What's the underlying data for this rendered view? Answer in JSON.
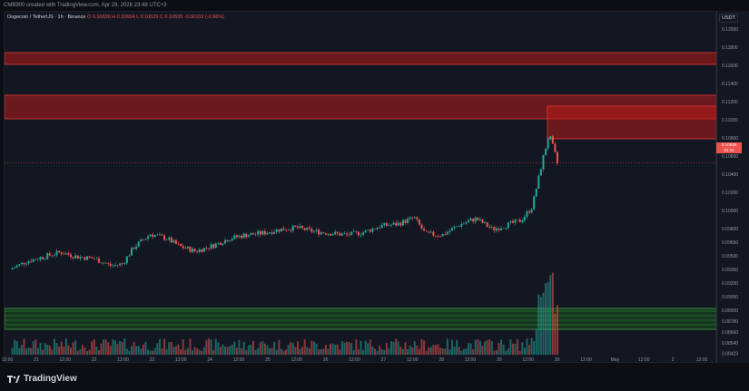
{
  "header": {
    "text": "CMB900 created with TradingView.com, Apr 29, 2026 23:48 UTC+3"
  },
  "legend": {
    "symbol": "Dogecoin / TetherUS · 1h · Binance",
    "open": "O 0.10636",
    "high": "H 0.10654",
    "low": "L 0.10529",
    "close": "C 0.10535",
    "change": "-0.00102 (-0.96%)"
  },
  "price_axis": {
    "currency": "USDT",
    "current_price": "0.10535",
    "current_sub": "01:11"
  },
  "footer": {
    "brand": "TradingView"
  },
  "colors": {
    "up": "#26a69a",
    "down": "#ef5350",
    "background": "#131722",
    "resistance_zone": "#b71c1c",
    "support_zone": "#1b5e20"
  },
  "chart_data": {
    "type": "candlestick",
    "symbol": "DOGEUSDT",
    "interval": "1h",
    "x": [
      "12:00",
      "21",
      "12:00",
      "22",
      "12:00",
      "23",
      "12:00",
      "24",
      "12:00",
      "25",
      "12:00",
      "26",
      "12:00",
      "27",
      "12:00",
      "28",
      "12:00",
      "29",
      "12:00",
      "30",
      "12:00",
      "May",
      "12:00",
      "2",
      "12:00"
    ],
    "y_ticks": [
      "0.12000",
      "0.11800",
      "0.11600",
      "0.11400",
      "0.11200",
      "0.11000",
      "0.10800",
      "0.10600",
      "0.10400",
      "0.10200",
      "0.10000",
      "0.09800",
      "0.09650",
      "0.09500",
      "0.09350",
      "0.09200",
      "0.09050",
      "0.08900",
      "0.08780",
      "0.08660",
      "0.08540",
      "0.08423"
    ],
    "ylim": [
      0.0842,
      0.1212
    ],
    "close_path": [
      {
        "x": 0.0,
        "y": 0.0936
      },
      {
        "x": 0.3,
        "y": 0.0945
      },
      {
        "x": 0.6,
        "y": 0.095
      },
      {
        "x": 0.9,
        "y": 0.0955
      },
      {
        "x": 1.2,
        "y": 0.095
      },
      {
        "x": 1.5,
        "y": 0.0948
      },
      {
        "x": 1.8,
        "y": 0.094
      },
      {
        "x": 2.0,
        "y": 0.0942
      },
      {
        "x": 2.2,
        "y": 0.096
      },
      {
        "x": 2.5,
        "y": 0.0975
      },
      {
        "x": 2.8,
        "y": 0.097
      },
      {
        "x": 3.0,
        "y": 0.0962
      },
      {
        "x": 3.3,
        "y": 0.0956
      },
      {
        "x": 3.6,
        "y": 0.0962
      },
      {
        "x": 3.9,
        "y": 0.097
      },
      {
        "x": 4.2,
        "y": 0.0974
      },
      {
        "x": 4.5,
        "y": 0.0976
      },
      {
        "x": 4.8,
        "y": 0.098
      },
      {
        "x": 5.1,
        "y": 0.0982
      },
      {
        "x": 5.4,
        "y": 0.0978
      },
      {
        "x": 5.7,
        "y": 0.0976
      },
      {
        "x": 6.0,
        "y": 0.0974
      },
      {
        "x": 6.3,
        "y": 0.0977
      },
      {
        "x": 6.6,
        "y": 0.0984
      },
      {
        "x": 6.9,
        "y": 0.0986
      },
      {
        "x": 7.2,
        "y": 0.0993
      },
      {
        "x": 7.4,
        "y": 0.0975
      },
      {
        "x": 7.7,
        "y": 0.0974
      },
      {
        "x": 8.0,
        "y": 0.0985
      },
      {
        "x": 8.3,
        "y": 0.0992
      },
      {
        "x": 8.6,
        "y": 0.098
      },
      {
        "x": 8.9,
        "y": 0.0986
      },
      {
        "x": 9.1,
        "y": 0.099
      },
      {
        "x": 9.3,
        "y": 0.1005
      },
      {
        "x": 9.5,
        "y": 0.106
      },
      {
        "x": 9.6,
        "y": 0.1085
      },
      {
        "x": 9.7,
        "y": 0.1065
      },
      {
        "x": 9.75,
        "y": 0.1053
      }
    ],
    "zones": [
      {
        "kind": "resistance",
        "from": 0.1162,
        "to": 0.1175
      },
      {
        "kind": "resistance",
        "from": 0.1102,
        "to": 0.1128
      },
      {
        "kind": "resistance",
        "from": 0.108,
        "to": 0.1116
      },
      {
        "kind": "support",
        "from": 0.087,
        "to": 0.0893
      }
    ],
    "current_price": 0.10535,
    "grid": false
  }
}
